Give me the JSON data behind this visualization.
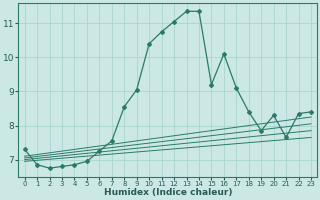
{
  "xlabel": "Humidex (Indice chaleur)",
  "background_color": "#cce8e4",
  "grid_color": "#aad4d0",
  "line_color": "#2a7a6a",
  "xlim": [
    -0.5,
    23.5
  ],
  "ylim": [
    6.5,
    11.6
  ],
  "xticks": [
    0,
    1,
    2,
    3,
    4,
    5,
    6,
    7,
    8,
    9,
    10,
    11,
    12,
    13,
    14,
    15,
    16,
    17,
    18,
    19,
    20,
    21,
    22,
    23
  ],
  "yticks": [
    7,
    8,
    9,
    10,
    11
  ],
  "main_x": [
    0,
    1,
    2,
    3,
    4,
    5,
    6,
    7,
    8,
    9,
    10,
    11,
    12,
    13,
    14,
    15,
    16,
    17,
    18,
    19,
    20,
    21,
    22,
    23
  ],
  "main_y": [
    7.3,
    6.85,
    6.75,
    6.8,
    6.85,
    6.95,
    7.25,
    7.55,
    8.55,
    9.05,
    10.4,
    10.75,
    11.05,
    11.35,
    11.35,
    9.2,
    10.1,
    9.1,
    8.4,
    7.85,
    8.3,
    7.65,
    8.35,
    8.4
  ],
  "flat_lines": [
    [
      0,
      23,
      7.1,
      8.25
    ],
    [
      0,
      23,
      7.05,
      8.05
    ],
    [
      0,
      23,
      7.0,
      7.85
    ],
    [
      0,
      23,
      6.95,
      7.65
    ]
  ]
}
